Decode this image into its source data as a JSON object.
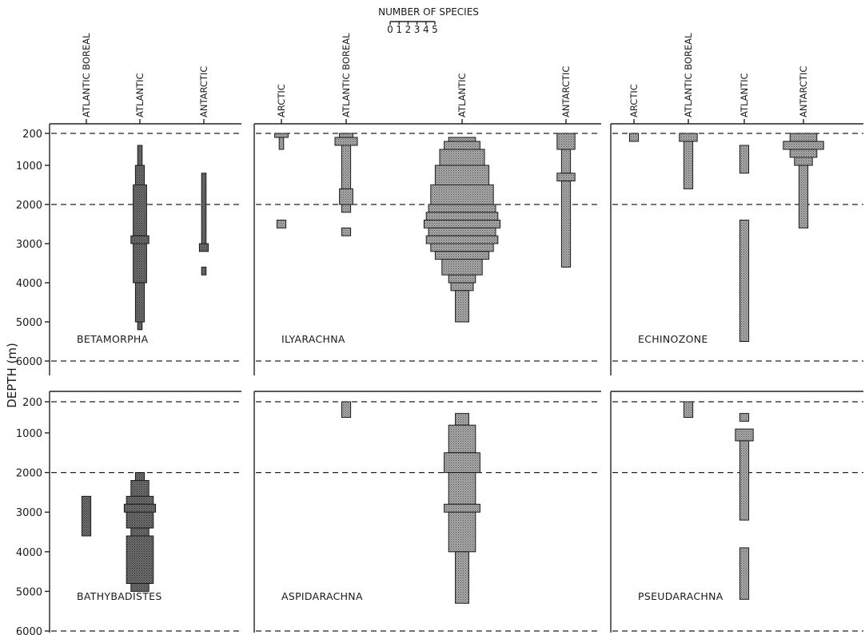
{
  "chart_data": {
    "type": "bar",
    "ylabel": "DEPTH (m)",
    "y_ticks": [
      "200",
      "1000",
      "2000",
      "3000",
      "4000",
      "5000",
      "6000"
    ],
    "key": {
      "title": "NUMBER OF SPECIES",
      "ticks": [
        "0",
        "1",
        "2",
        "3",
        "4",
        "5"
      ]
    },
    "panels": [
      {
        "genus": "BETAMORPHA",
        "columns": [
          {
            "label": "ATLANTIC BOREAL",
            "segments": []
          },
          {
            "label": "ATLANTIC",
            "segments": [
              [
                500,
                1000,
                1
              ],
              [
                1000,
                1500,
                2
              ],
              [
                1500,
                2800,
                3
              ],
              [
                2800,
                3000,
                4
              ],
              [
                3000,
                4000,
                3
              ],
              [
                4000,
                5000,
                2
              ],
              [
                5000,
                5200,
                1
              ]
            ]
          },
          {
            "label": "ANTARCTIC",
            "segments": [
              [
                1200,
                3000,
                1
              ],
              [
                3000,
                3200,
                2
              ],
              [
                3600,
                3800,
                1
              ]
            ]
          }
        ]
      },
      {
        "genus": "ILYARACHNA",
        "columns": [
          {
            "label": "ARCTIC",
            "segments": [
              [
                200,
                300,
                3
              ],
              [
                300,
                600,
                1
              ],
              [
                2400,
                2600,
                2
              ]
            ]
          },
          {
            "label": "ATLANTIC BOREAL",
            "segments": [
              [
                200,
                300,
                3
              ],
              [
                300,
                500,
                5
              ],
              [
                500,
                1600,
                2
              ],
              [
                1600,
                2000,
                3
              ],
              [
                2000,
                2200,
                2
              ],
              [
                2600,
                2800,
                2
              ]
            ]
          },
          {
            "label": "ATLANTIC",
            "segments": [
              [
                300,
                400,
                6
              ],
              [
                400,
                600,
                8
              ],
              [
                600,
                1000,
                10
              ],
              [
                1000,
                1500,
                12
              ],
              [
                1500,
                2000,
                14
              ],
              [
                2000,
                2200,
                15
              ],
              [
                2200,
                2400,
                16
              ],
              [
                2400,
                2600,
                17
              ],
              [
                2600,
                2800,
                15
              ],
              [
                2800,
                3000,
                16
              ],
              [
                3000,
                3200,
                14
              ],
              [
                3200,
                3400,
                12
              ],
              [
                3400,
                3800,
                9
              ],
              [
                3800,
                4000,
                6
              ],
              [
                4000,
                4200,
                5
              ],
              [
                4200,
                5000,
                3
              ]
            ]
          },
          {
            "label": "ANTARCTIC",
            "segments": [
              [
                200,
                600,
                4
              ],
              [
                600,
                1200,
                2
              ],
              [
                1200,
                1400,
                4
              ],
              [
                1400,
                3600,
                2
              ]
            ]
          }
        ]
      },
      {
        "genus": "ECHINOZONE",
        "columns": [
          {
            "label": "ARCTIC",
            "segments": [
              [
                200,
                400,
                2
              ]
            ]
          },
          {
            "label": "ATLANTIC BOREAL",
            "segments": [
              [
                200,
                400,
                4
              ],
              [
                400,
                1600,
                2
              ]
            ]
          },
          {
            "label": "ATLANTIC",
            "segments": [
              [
                500,
                1200,
                2
              ],
              [
                2400,
                5500,
                2
              ]
            ]
          },
          {
            "label": "ANTARCTIC",
            "segments": [
              [
                200,
                400,
                6
              ],
              [
                400,
                600,
                9
              ],
              [
                600,
                800,
                6
              ],
              [
                800,
                1000,
                4
              ],
              [
                1000,
                2600,
                2
              ]
            ]
          }
        ]
      },
      {
        "genus": "BATHYBADISTES",
        "columns": [
          {
            "label": "ATLANTIC BOREAL",
            "segments": [
              [
                2600,
                3600,
                2
              ]
            ]
          },
          {
            "label": "ATLANTIC",
            "segments": [
              [
                2000,
                2200,
                2
              ],
              [
                2200,
                2600,
                4
              ],
              [
                2600,
                2800,
                6
              ],
              [
                2800,
                3000,
                7
              ],
              [
                3000,
                3400,
                6
              ],
              [
                3400,
                3600,
                4
              ],
              [
                3600,
                4800,
                6
              ],
              [
                4800,
                5000,
                4
              ]
            ]
          },
          {
            "label": "ANTARCTIC",
            "segments": []
          }
        ]
      },
      {
        "genus": "ASPIDARACHNA",
        "columns": [
          {
            "label": "ARCTIC",
            "segments": []
          },
          {
            "label": "ATLANTIC BOREAL",
            "segments": [
              [
                200,
                600,
                2
              ]
            ]
          },
          {
            "label": "ATLANTIC",
            "segments": [
              [
                500,
                800,
                3
              ],
              [
                800,
                1500,
                6
              ],
              [
                1500,
                2000,
                8
              ],
              [
                2000,
                2800,
                6
              ],
              [
                2800,
                3000,
                8
              ],
              [
                3000,
                4000,
                6
              ],
              [
                4000,
                5300,
                3
              ]
            ]
          },
          {
            "label": "ANTARCTIC",
            "segments": []
          }
        ]
      },
      {
        "genus": "PSEUDARACHNA",
        "columns": [
          {
            "label": "ARCTIC",
            "segments": []
          },
          {
            "label": "ATLANTIC BOREAL",
            "segments": [
              [
                200,
                600,
                2
              ]
            ]
          },
          {
            "label": "ATLANTIC",
            "segments": [
              [
                500,
                700,
                2
              ],
              [
                900,
                1200,
                4
              ],
              [
                1200,
                3200,
                2
              ],
              [
                3900,
                5200,
                2
              ]
            ]
          },
          {
            "label": "ANTARCTIC",
            "segments": []
          }
        ]
      }
    ]
  }
}
